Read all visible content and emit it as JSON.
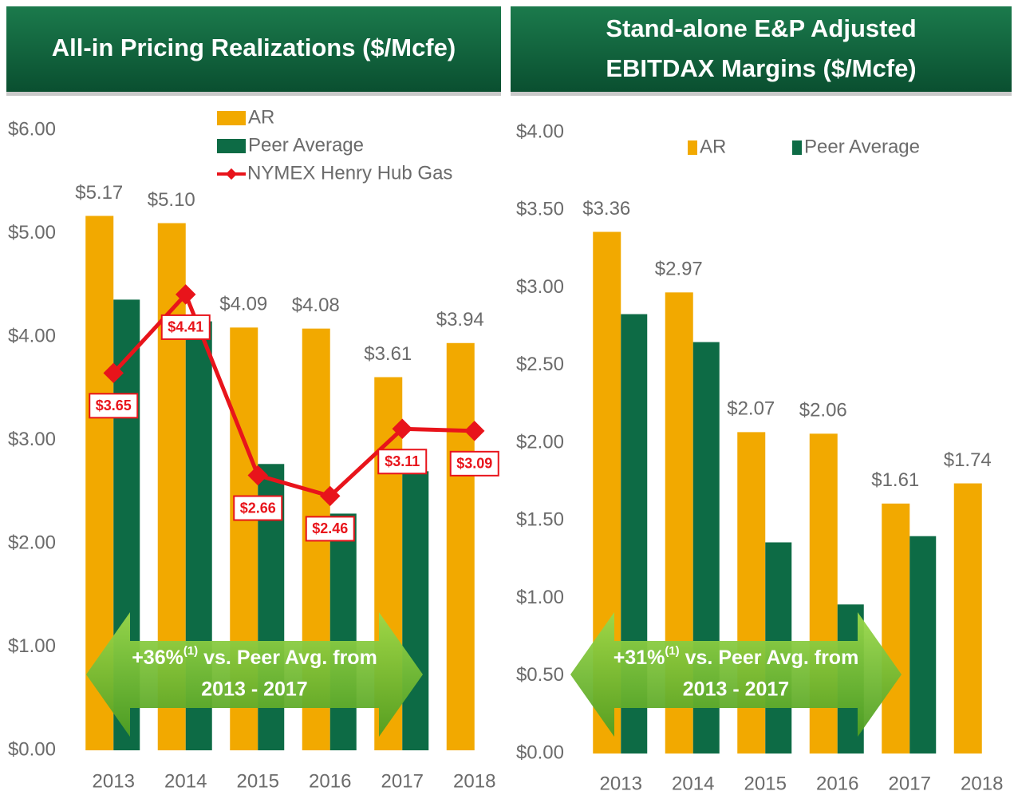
{
  "chart_data": [
    {
      "type": "bar",
      "title": "All-in Pricing Realizations ($/Mcfe)",
      "categories": [
        "2013",
        "2014",
        "2015",
        "2016",
        "2017",
        "2018"
      ],
      "series": [
        {
          "name": "AR",
          "color": "#f2a900",
          "values": [
            5.17,
            5.1,
            4.09,
            4.08,
            3.61,
            3.94
          ],
          "value_labels": [
            "$5.17",
            "$5.10",
            "$4.09",
            "$4.08",
            "$3.61",
            "$3.94"
          ]
        },
        {
          "name": "Peer Average",
          "color": "#0d6b45",
          "values": [
            4.36,
            4.15,
            2.77,
            2.29,
            2.7,
            null
          ]
        },
        {
          "name": "NYMEX Henry Hub Gas",
          "type": "line",
          "color": "#e8141b",
          "values": [
            3.65,
            4.41,
            2.66,
            2.46,
            3.11,
            3.09
          ],
          "value_labels": [
            "$3.65",
            "$4.41",
            "$2.66",
            "$2.46",
            "$3.11",
            "$3.09"
          ]
        }
      ],
      "ylim": [
        0,
        6
      ],
      "yticks": [
        {
          "value": 0,
          "label": "$0.00"
        },
        {
          "value": 1,
          "label": "$1.00"
        },
        {
          "value": 2,
          "label": "$2.00"
        },
        {
          "value": 3,
          "label": "$3.00"
        },
        {
          "value": 4,
          "label": "$4.00"
        },
        {
          "value": 5,
          "label": "$5.00"
        },
        {
          "value": 6,
          "label": "$6.00"
        }
      ],
      "annotation": [
        "+36%",
        "(1)",
        " vs. Peer Avg. from",
        "2013 - 2017"
      ],
      "grid": false
    },
    {
      "type": "bar",
      "title": [
        "Stand-alone E&P Adjusted",
        "EBITDAX Margins ($/Mcfe)"
      ],
      "categories": [
        "2013",
        "2014",
        "2015",
        "2016",
        "2017",
        "2018"
      ],
      "series": [
        {
          "name": "AR",
          "color": "#f2a900",
          "values": [
            3.36,
            2.97,
            2.07,
            2.06,
            1.61,
            1.74
          ],
          "value_labels": [
            "$3.36",
            "$2.97",
            "$2.07",
            "$2.06",
            "$1.61",
            "$1.74"
          ]
        },
        {
          "name": "Peer Average",
          "color": "#0d6b45",
          "values": [
            2.83,
            2.65,
            1.36,
            0.96,
            1.4,
            null
          ]
        }
      ],
      "ylim": [
        0,
        4
      ],
      "yticks": [
        {
          "value": 0,
          "label": "$0.00"
        },
        {
          "value": 0.5,
          "label": "$0.50"
        },
        {
          "value": 1,
          "label": "$1.00"
        },
        {
          "value": 1.5,
          "label": "$1.50"
        },
        {
          "value": 2,
          "label": "$2.00"
        },
        {
          "value": 2.5,
          "label": "$2.50"
        },
        {
          "value": 3,
          "label": "$3.00"
        },
        {
          "value": 3.5,
          "label": "$3.50"
        },
        {
          "value": 4,
          "label": "$4.00"
        }
      ],
      "annotation": [
        "+31%",
        "(1)",
        " vs. Peer Avg. from",
        "2013 - 2017"
      ],
      "grid": false
    }
  ]
}
